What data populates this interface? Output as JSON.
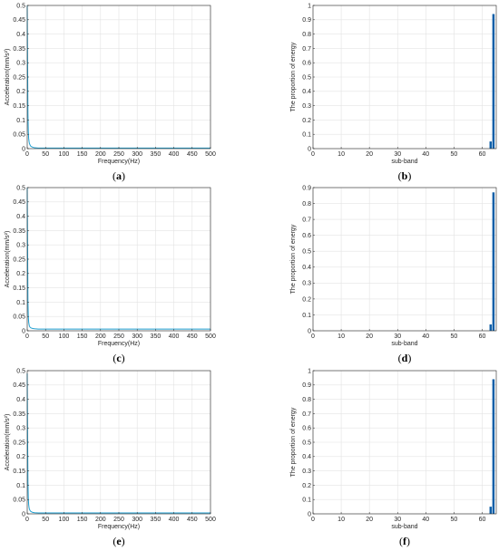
{
  "panels": [
    {
      "id": "a",
      "caption_open": "(",
      "caption_letter": "a",
      "caption_close": ")"
    },
    {
      "id": "b",
      "caption_open": "(",
      "caption_letter": "b",
      "caption_close": ")"
    },
    {
      "id": "c",
      "caption_open": "(",
      "caption_letter": "c",
      "caption_close": ")"
    },
    {
      "id": "d",
      "caption_open": "(",
      "caption_letter": "d",
      "caption_close": ")"
    },
    {
      "id": "e",
      "caption_open": "(",
      "caption_letter": "e",
      "caption_close": ")"
    },
    {
      "id": "f",
      "caption_open": "(",
      "caption_letter": "f",
      "caption_close": ")"
    }
  ],
  "colors": {
    "series": "#1f9fd0",
    "bar": "#0f5fa8",
    "grid": "#e3e3e3",
    "axis": "#262626"
  },
  "chart_data": [
    {
      "panel": "a",
      "type": "line",
      "xlabel": "Frequency(Hz)",
      "ylabel": "Acceleration(mm/s²)",
      "xlim": [
        0,
        500
      ],
      "ylim": [
        0,
        0.5
      ],
      "xticks": [
        0,
        50,
        100,
        150,
        200,
        250,
        300,
        350,
        400,
        450,
        500
      ],
      "yticks": [
        0,
        0.05,
        0.1,
        0.15,
        0.2,
        0.25,
        0.3,
        0.35,
        0.4,
        0.45,
        0.5
      ],
      "ytick_labels": [
        "0",
        "0.05",
        "0.1",
        "0.15",
        "0.2",
        "0.25",
        "0.3",
        "0.35",
        "0.4",
        "0.45",
        "0.5"
      ],
      "grid": true,
      "x": [
        0,
        1,
        2,
        3,
        4,
        5,
        6,
        8,
        10,
        15,
        20,
        30,
        50,
        100,
        150,
        200,
        250,
        300,
        350,
        400,
        450,
        500
      ],
      "y": [
        0.5,
        0.3,
        0.12,
        0.06,
        0.035,
        0.025,
        0.018,
        0.012,
        0.008,
        0.005,
        0.003,
        0.002,
        0.002,
        0.002,
        0.002,
        0.002,
        0.002,
        0.002,
        0.002,
        0.002,
        0.002,
        0.002
      ]
    },
    {
      "panel": "b",
      "type": "bar",
      "xlabel": "sub-band",
      "ylabel": "The proportion of energy",
      "xlim": [
        0,
        65
      ],
      "ylim": [
        0,
        1
      ],
      "xticks": [
        0,
        10,
        20,
        30,
        40,
        50,
        60
      ],
      "yticks": [
        0,
        0.1,
        0.2,
        0.3,
        0.4,
        0.5,
        0.6,
        0.7,
        0.8,
        0.9,
        1
      ],
      "ytick_labels": [
        "0",
        "0.1",
        "0.2",
        "0.3",
        "0.4",
        "0.5",
        "0.6",
        "0.7",
        "0.8",
        "0.9",
        "1"
      ],
      "grid": true,
      "categories": [
        63,
        64
      ],
      "values": [
        0.05,
        0.94
      ]
    },
    {
      "panel": "c",
      "type": "line",
      "xlabel": "Frequency(Hz)",
      "ylabel": "Acceleration(mm/s²)",
      "xlim": [
        0,
        500
      ],
      "ylim": [
        0,
        0.5
      ],
      "xticks": [
        0,
        50,
        100,
        150,
        200,
        250,
        300,
        350,
        400,
        450,
        500
      ],
      "yticks": [
        0,
        0.05,
        0.1,
        0.15,
        0.2,
        0.25,
        0.3,
        0.35,
        0.4,
        0.45,
        0.5
      ],
      "ytick_labels": [
        "0",
        "0.05",
        "0.1",
        "0.15",
        "0.2",
        "0.25",
        "0.3",
        "0.35",
        "0.4",
        "0.45",
        "0.5"
      ],
      "grid": true,
      "x": [
        0,
        1,
        2,
        3,
        4,
        5,
        6,
        8,
        10,
        15,
        20,
        30,
        50,
        100,
        150,
        200,
        250,
        300,
        350,
        400,
        450,
        500
      ],
      "y": [
        0.5,
        0.3,
        0.1,
        0.05,
        0.03,
        0.022,
        0.016,
        0.012,
        0.01,
        0.008,
        0.007,
        0.006,
        0.006,
        0.006,
        0.006,
        0.006,
        0.006,
        0.006,
        0.006,
        0.006,
        0.006,
        0.006
      ]
    },
    {
      "panel": "d",
      "type": "bar",
      "xlabel": "sub-band",
      "ylabel": "The proportion of energy",
      "xlim": [
        0,
        65
      ],
      "ylim": [
        0,
        0.9
      ],
      "xticks": [
        0,
        10,
        20,
        30,
        40,
        50,
        60
      ],
      "yticks": [
        0,
        0.1,
        0.2,
        0.3,
        0.4,
        0.5,
        0.6,
        0.7,
        0.8,
        0.9
      ],
      "ytick_labels": [
        "0",
        "0.1",
        "0.2",
        "0.3",
        "0.4",
        "0.5",
        "0.6",
        "0.7",
        "0.8",
        "0.9"
      ],
      "grid": true,
      "categories": [
        63,
        64
      ],
      "values": [
        0.04,
        0.87
      ]
    },
    {
      "panel": "e",
      "type": "line",
      "xlabel": "Frequency(Hz)",
      "ylabel": "Acceleration(mm/s²)",
      "xlim": [
        0,
        500
      ],
      "ylim": [
        0,
        0.5
      ],
      "xticks": [
        0,
        50,
        100,
        150,
        200,
        250,
        300,
        350,
        400,
        450,
        500
      ],
      "yticks": [
        0,
        0.05,
        0.1,
        0.15,
        0.2,
        0.25,
        0.3,
        0.35,
        0.4,
        0.45,
        0.5
      ],
      "ytick_labels": [
        "0",
        "0.05",
        "0.1",
        "0.15",
        "0.2",
        "0.25",
        "0.3",
        "0.35",
        "0.4",
        "0.45",
        "0.5"
      ],
      "grid": true,
      "x": [
        0,
        1,
        2,
        3,
        4,
        5,
        6,
        8,
        10,
        15,
        20,
        30,
        50,
        100,
        150,
        200,
        250,
        300,
        350,
        400,
        450,
        500
      ],
      "y": [
        0.49,
        0.28,
        0.11,
        0.055,
        0.032,
        0.022,
        0.016,
        0.011,
        0.008,
        0.005,
        0.004,
        0.003,
        0.003,
        0.003,
        0.003,
        0.003,
        0.003,
        0.003,
        0.003,
        0.003,
        0.003,
        0.003
      ]
    },
    {
      "panel": "f",
      "type": "bar",
      "xlabel": "sub-band",
      "ylabel": "The proportion of energy",
      "xlim": [
        0,
        65
      ],
      "ylim": [
        0,
        1
      ],
      "xticks": [
        0,
        10,
        20,
        30,
        40,
        50,
        60
      ],
      "yticks": [
        0,
        0.1,
        0.2,
        0.3,
        0.4,
        0.5,
        0.6,
        0.7,
        0.8,
        0.9,
        1
      ],
      "ytick_labels": [
        "0",
        "0.1",
        "0.2",
        "0.3",
        "0.4",
        "0.5",
        "0.6",
        "0.7",
        "0.8",
        "0.9",
        "1"
      ],
      "grid": true,
      "categories": [
        63,
        64
      ],
      "values": [
        0.05,
        0.94
      ]
    }
  ]
}
